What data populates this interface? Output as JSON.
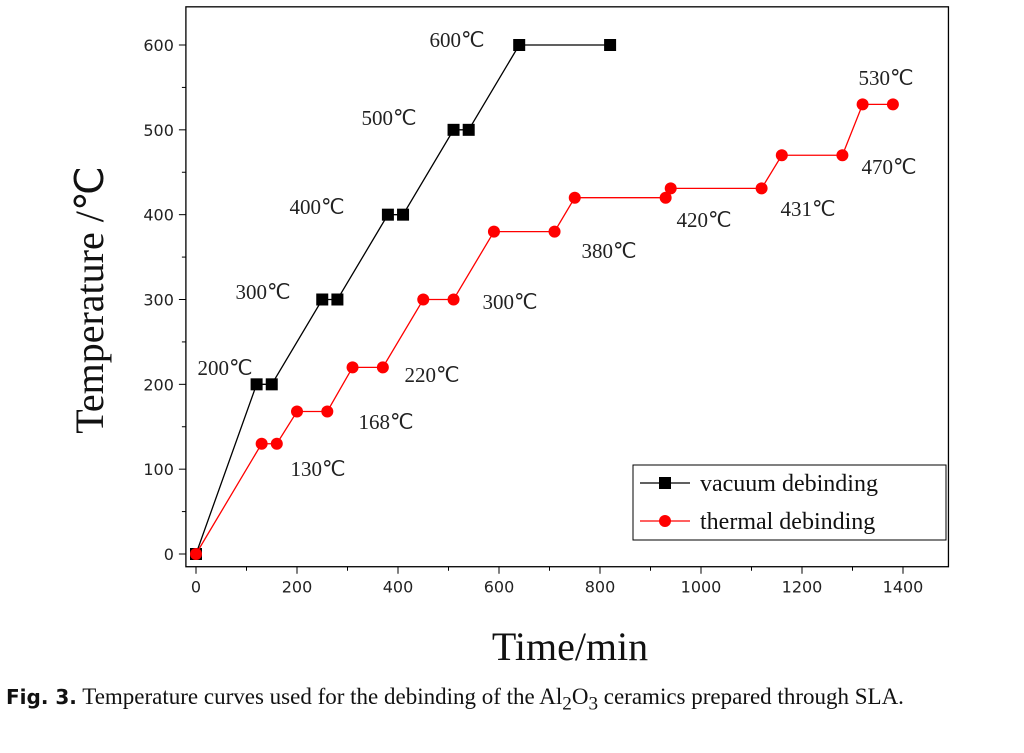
{
  "chart_data": {
    "type": "line",
    "xlabel": "Time/min",
    "ylabel": "Temperature /℃",
    "xlim": [
      -20,
      1490
    ],
    "ylim": [
      -15,
      645
    ],
    "xticks": [
      0,
      200,
      400,
      600,
      800,
      1000,
      1200,
      1400
    ],
    "yticks": [
      0,
      100,
      200,
      300,
      400,
      500,
      600
    ],
    "grid": false,
    "legend": "bottom-right",
    "series": [
      {
        "name": "vacuum debinding",
        "color": "#000000",
        "marker": "square",
        "x": [
          0,
          120,
          150,
          250,
          280,
          380,
          410,
          510,
          540,
          640,
          820
        ],
        "y": [
          0,
          200,
          200,
          300,
          300,
          400,
          400,
          500,
          500,
          600,
          600
        ]
      },
      {
        "name": "thermal debinding",
        "color": "#ff0000",
        "marker": "circle",
        "x": [
          0,
          130,
          160,
          200,
          260,
          310,
          370,
          450,
          510,
          590,
          710,
          750,
          930,
          940,
          1120,
          1160,
          1280,
          1320,
          1380
        ],
        "y": [
          0,
          130,
          130,
          168,
          168,
          220,
          220,
          300,
          300,
          380,
          380,
          420,
          420,
          431,
          431,
          470,
          470,
          530,
          530
        ]
      }
    ],
    "annotations": [
      "200℃",
      "300℃",
      "400℃",
      "500℃",
      "600℃",
      "130℃",
      "168℃",
      "220℃",
      "300℃",
      "380℃",
      "420℃",
      "431℃",
      "470℃",
      "530℃"
    ]
  },
  "caption": {
    "label": "Fig. 3.",
    "text_before": "Temperature curves used for the debinding of the Al",
    "sub1": "2",
    "mid": "O",
    "sub2": "3",
    "text_after": " ceramics prepared through SLA."
  }
}
